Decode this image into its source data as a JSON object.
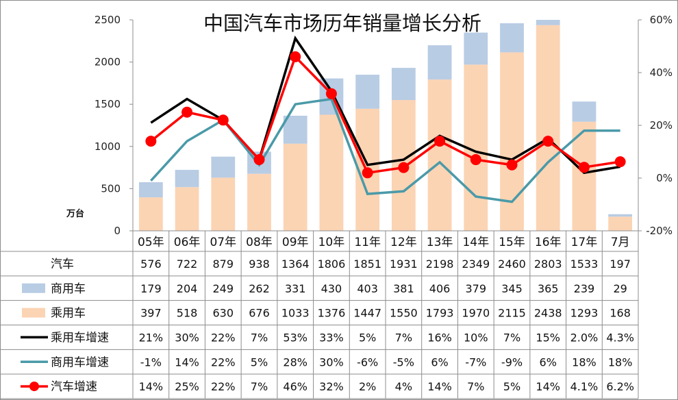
{
  "chart_data": {
    "type": "bar",
    "title": "中国汽车市场历年销量增长分析",
    "ylabel": "万台",
    "ylim": [
      0,
      2500
    ],
    "y2lim": [
      -20,
      60
    ],
    "left_ticks": [
      "0",
      "500",
      "1000",
      "1500",
      "2000",
      "2500"
    ],
    "right_ticks": [
      "-20%",
      "0%",
      "20%",
      "40%",
      "60%"
    ],
    "grid": false,
    "legend": "table-left",
    "categories": [
      "05年",
      "06年",
      "07年",
      "08年",
      "09年",
      "10年",
      "11年",
      "12年",
      "13年",
      "14年",
      "15年",
      "16年",
      "17年",
      "7月"
    ],
    "series": [
      {
        "name": "汽车",
        "kind": "table-only",
        "values": [
          576,
          722,
          879,
          938,
          1364,
          1806,
          1851,
          1931,
          2198,
          2349,
          2460,
          2803,
          1533,
          197
        ],
        "labels": [
          "576",
          "722",
          "879",
          "938",
          "1364",
          "1806",
          "1851",
          "1931",
          "2198",
          "2349",
          "2460",
          "2803",
          "1533",
          "197"
        ]
      },
      {
        "name": "商用车",
        "kind": "bar-stacked",
        "color": "#b8cce4",
        "values": [
          179,
          204,
          249,
          262,
          331,
          430,
          403,
          381,
          406,
          379,
          345,
          365,
          239,
          29
        ],
        "labels": [
          "179",
          "204",
          "249",
          "262",
          "331",
          "430",
          "403",
          "381",
          "406",
          "379",
          "345",
          "365",
          "239",
          "29"
        ]
      },
      {
        "name": "乘用车",
        "kind": "bar-stacked",
        "color": "#fbd4b4",
        "values": [
          397,
          518,
          630,
          676,
          1033,
          1376,
          1447,
          1550,
          1793,
          1970,
          2115,
          2438,
          1293,
          168
        ],
        "labels": [
          "397",
          "518",
          "630",
          "676",
          "1033",
          "1376",
          "1447",
          "1550",
          "1793",
          "1970",
          "2115",
          "2438",
          "1293",
          "168"
        ]
      },
      {
        "name": "乘用车增速",
        "kind": "line",
        "axis": "right",
        "color": "#000000",
        "values": [
          21,
          30,
          22,
          7,
          53,
          33,
          5,
          7,
          16,
          10,
          7,
          15,
          2.0,
          4.3
        ],
        "labels": [
          "21%",
          "30%",
          "22%",
          "7%",
          "53%",
          "33%",
          "5%",
          "7%",
          "16%",
          "10%",
          "7%",
          "15%",
          "2.0%",
          "4.3%"
        ]
      },
      {
        "name": "商用车增速",
        "kind": "line",
        "axis": "right",
        "color": "#4a9aa8",
        "values": [
          -1,
          14,
          22,
          5,
          28,
          30,
          -6,
          -5,
          6,
          -7,
          -9,
          6,
          18,
          18
        ],
        "labels": [
          "-1%",
          "14%",
          "22%",
          "5%",
          "28%",
          "30%",
          "-6%",
          "-5%",
          "6%",
          "-7%",
          "-9%",
          "6%",
          "18%",
          "18%"
        ]
      },
      {
        "name": "汽车增速",
        "kind": "line-marker",
        "axis": "right",
        "color": "#ff0000",
        "values": [
          14,
          25,
          22,
          7,
          46,
          32,
          2,
          4,
          14,
          7,
          5,
          14,
          4.1,
          6.2
        ],
        "labels": [
          "14%",
          "25%",
          "22%",
          "7%",
          "46%",
          "32%",
          "2%",
          "4%",
          "14%",
          "7%",
          "5%",
          "14%",
          "4.1%",
          "6.2%"
        ]
      }
    ]
  }
}
